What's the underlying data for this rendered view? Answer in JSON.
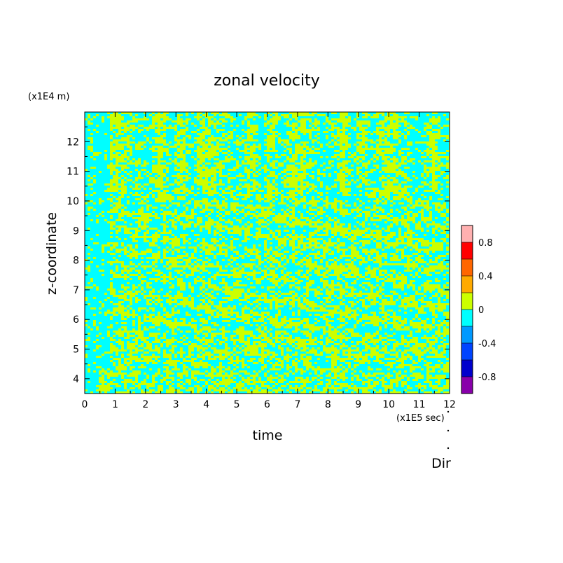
{
  "chart_data": {
    "type": "heatmap",
    "title": "zonal velocity",
    "xlabel": "time",
    "ylabel": "z-coordinate",
    "x_unit_label": "(x1E5 sec)",
    "y_unit_label": "(x1E4 m)",
    "footer_label": "Dir",
    "xlim": [
      0,
      12
    ],
    "ylim": [
      3.5,
      13
    ],
    "x_ticks": [
      "0",
      "1",
      "2",
      "3",
      "4",
      "5",
      "6",
      "7",
      "8",
      "9",
      "10",
      "11",
      "12"
    ],
    "y_ticks": [
      "4",
      "5",
      "6",
      "7",
      "8",
      "9",
      "10",
      "11",
      "12"
    ],
    "dominant_levels": [
      {
        "range": [
          -0.2,
          0.0
        ],
        "color": "#00ffff"
      },
      {
        "range": [
          0.0,
          0.2
        ],
        "color": "#ccff00"
      }
    ],
    "colorbar": {
      "min": -1.0,
      "max": 1.0,
      "levels": [
        {
          "from": -1.0,
          "to": -0.8,
          "color": "#8800aa"
        },
        {
          "from": -0.8,
          "to": -0.6,
          "color": "#0000cc"
        },
        {
          "from": -0.6,
          "to": -0.4,
          "color": "#0044ff"
        },
        {
          "from": -0.4,
          "to": -0.2,
          "color": "#0099ff"
        },
        {
          "from": -0.2,
          "to": 0.0,
          "color": "#00ffff"
        },
        {
          "from": 0.0,
          "to": 0.2,
          "color": "#ccff00"
        },
        {
          "from": 0.2,
          "to": 0.4,
          "color": "#ffaa00"
        },
        {
          "from": 0.4,
          "to": 0.6,
          "color": "#ff6600"
        },
        {
          "from": 0.6,
          "to": 0.8,
          "color": "#ff0000"
        },
        {
          "from": 0.8,
          "to": 1.0,
          "color": "#ffb0b0"
        }
      ],
      "tick_values": [
        0.8,
        0.4,
        0,
        -0.4,
        -0.8
      ],
      "tick_labels": [
        "0.8",
        "0.4",
        "0",
        "-0.4",
        "-0.8"
      ]
    }
  }
}
